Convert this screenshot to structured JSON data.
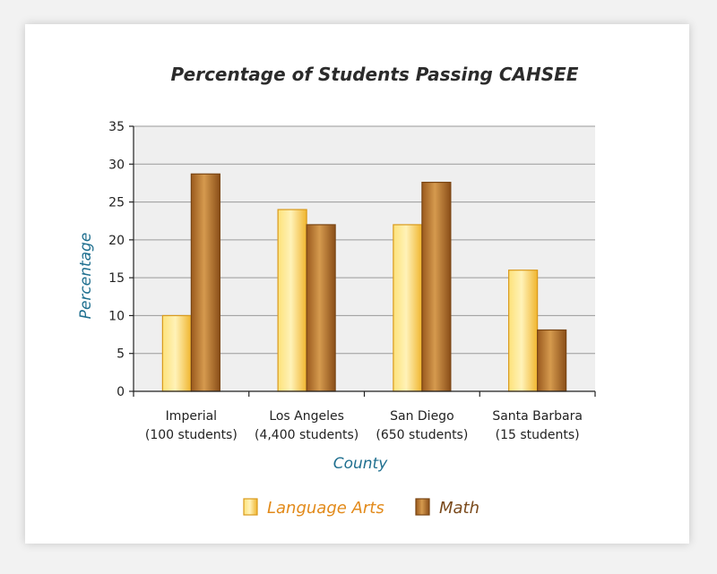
{
  "chart_data": {
    "type": "bar",
    "title": "Percentage of Students Passing CAHSEE",
    "xlabel": "County",
    "ylabel": "Percentage",
    "ylim": [
      0,
      35
    ],
    "yticks": [
      0,
      5,
      10,
      15,
      20,
      25,
      30,
      35
    ],
    "grid": true,
    "legend_position": "bottom",
    "categories": [
      {
        "name": "Imperial",
        "sub": "(100 students)"
      },
      {
        "name": "Los Angeles",
        "sub": "(4,400 students)"
      },
      {
        "name": "San Diego",
        "sub": "(650 students)"
      },
      {
        "name": "Santa Barbara",
        "sub": "(15 students)"
      }
    ],
    "series": [
      {
        "name": "Language Arts",
        "values": [
          10,
          24,
          22,
          16
        ],
        "color": "#f5c542",
        "label_color": "#e28a1a"
      },
      {
        "name": "Math",
        "values": [
          28.7,
          22,
          27.6,
          8.1
        ],
        "color": "#b8752a",
        "label_color": "#7a4a1c"
      }
    ]
  }
}
